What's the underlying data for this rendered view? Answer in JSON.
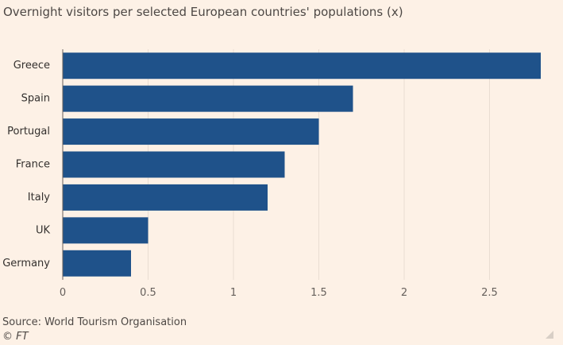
{
  "chart_data": {
    "type": "bar",
    "orientation": "horizontal",
    "title": "Overnight visitors per selected European countries' populations (x)",
    "categories": [
      "Greece",
      "Spain",
      "Portugal",
      "France",
      "Italy",
      "UK",
      "Germany"
    ],
    "values": [
      2.8,
      1.7,
      1.5,
      1.3,
      1.2,
      0.5,
      0.4
    ],
    "xlim": [
      0,
      2.8
    ],
    "xticks": [
      0,
      0.5,
      1,
      1.5,
      2,
      2.5
    ],
    "xtick_labels": [
      "0",
      "0.5",
      "1",
      "1.5",
      "2",
      "2.5"
    ],
    "xlabel": "",
    "ylabel": "",
    "grid": true,
    "bar_color": "#1f528a",
    "grid_color": "#e9ddd2",
    "axis_color": "#66605c"
  },
  "footer": {
    "source": "Source: World Tourism Organisation",
    "copyright": "© FT"
  }
}
